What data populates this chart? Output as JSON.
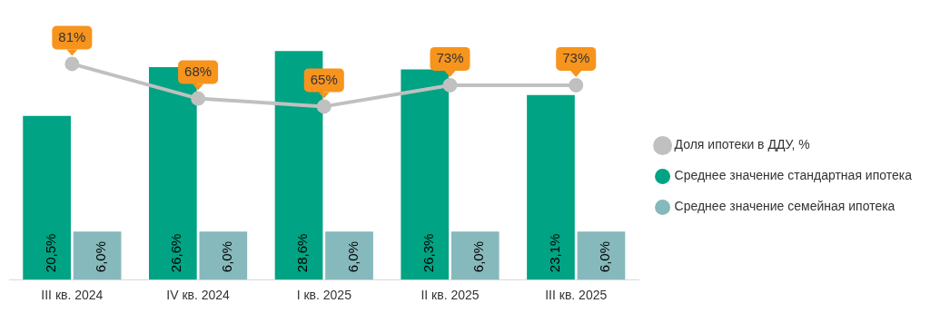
{
  "chart_data": {
    "type": "bar",
    "categories": [
      "III кв. 2024",
      "IV кв. 2024",
      "I кв. 2025",
      "II кв. 2025",
      "III кв. 2025"
    ],
    "series": [
      {
        "name": "Среднее значение стандартная ипотека",
        "color": "#00a383",
        "values": [
          20.5,
          26.6,
          28.6,
          26.3,
          23.1
        ],
        "value_labels": [
          "20,5%",
          "26,6%",
          "28,6%",
          "26,3%",
          "23,1%"
        ]
      },
      {
        "name": "Среднее значение семейная ипотека",
        "color": "#86b9bc",
        "values": [
          6.0,
          6.0,
          6.0,
          6.0,
          6.0
        ],
        "value_labels": [
          "6,0%",
          "6,0%",
          "6,0%",
          "6,0%",
          "6,0%"
        ]
      },
      {
        "name": "Доля ипотеки в ДДУ, %",
        "type": "line",
        "axis": "y2",
        "color": "#c0c0c0",
        "values": [
          81,
          68,
          65,
          73,
          73
        ],
        "value_labels": [
          "81%",
          "68%",
          "65%",
          "73%",
          "73%"
        ]
      }
    ],
    "legend": "right",
    "grid": false,
    "tick_labels": "x",
    "marker": "circle",
    "line_style": "solid"
  }
}
